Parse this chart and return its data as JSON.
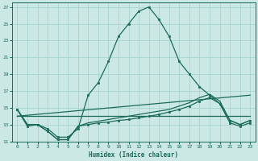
{
  "xlabel": "Humidex (Indice chaleur)",
  "bg_color": "#cce8e4",
  "grid_color": "#a8d5ce",
  "line_color": "#1a6b5a",
  "xlim": [
    -0.5,
    23.5
  ],
  "ylim": [
    11.0,
    27.5
  ],
  "x_ticks": [
    0,
    1,
    2,
    3,
    4,
    5,
    6,
    7,
    8,
    9,
    10,
    11,
    12,
    13,
    14,
    15,
    16,
    17,
    18,
    19,
    20,
    21,
    22,
    23
  ],
  "y_ticks": [
    11,
    13,
    15,
    17,
    19,
    21,
    23,
    25,
    27
  ],
  "line1_y": [
    14.8,
    12.8,
    13.0,
    12.5,
    11.5,
    11.5,
    12.5,
    16.5,
    18.0,
    20.5,
    23.5,
    25.0,
    26.5,
    27.0,
    25.5,
    23.5,
    20.5,
    19.0,
    17.5,
    16.5,
    15.5,
    13.5,
    13.0,
    13.5
  ],
  "line2_y": [
    14.8,
    13.0,
    13.0,
    12.2,
    11.2,
    11.2,
    12.8,
    13.0,
    13.2,
    13.3,
    13.5,
    13.6,
    13.8,
    14.0,
    14.2,
    14.5,
    14.8,
    15.2,
    15.8,
    16.2,
    15.5,
    13.2,
    12.8,
    13.2
  ],
  "line3_y": [
    14.8,
    13.0,
    13.0,
    12.2,
    11.2,
    11.2,
    12.8,
    13.2,
    13.4,
    13.6,
    13.8,
    14.0,
    14.2,
    14.4,
    14.6,
    14.8,
    15.2,
    15.6,
    16.2,
    16.6,
    15.8,
    13.5,
    13.0,
    13.5
  ],
  "line4_x": [
    0,
    23
  ],
  "line4_y": [
    14.0,
    14.0
  ],
  "line5_x": [
    0,
    23
  ],
  "line5_y": [
    14.0,
    16.5
  ]
}
